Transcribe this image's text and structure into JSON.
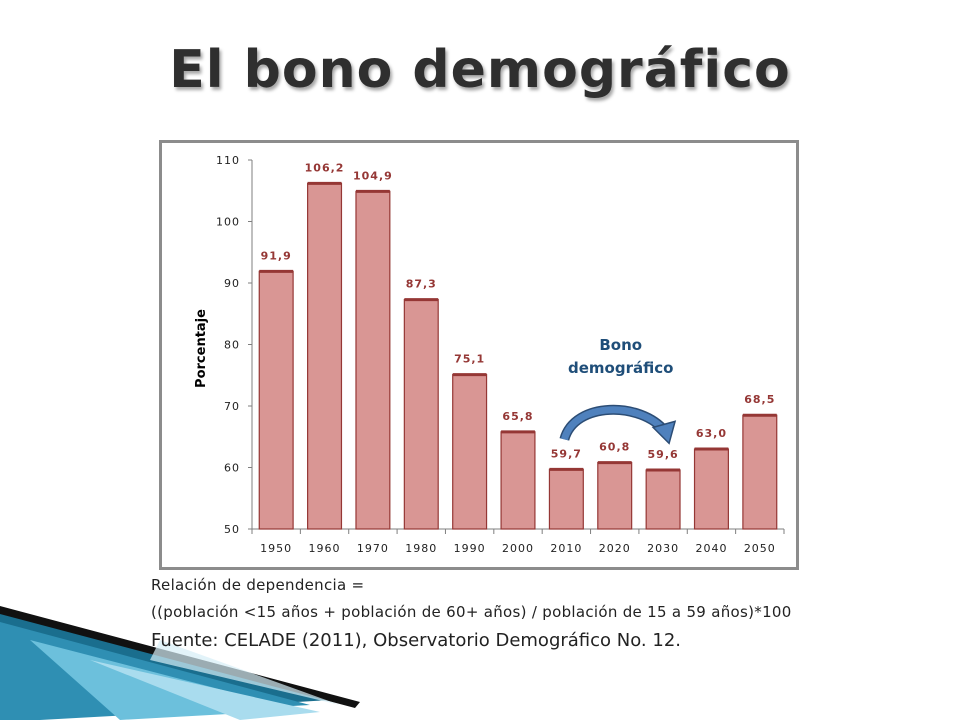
{
  "slide": {
    "title": "El bono demográfico",
    "footnotes": [
      "Relación de dependencia =",
      "((población <15 años + población de 60+ años) / población de 15 a 59 años)*100",
      "Fuente: CELADE (2011), Observatorio Demográfico No. 12."
    ]
  },
  "chart_data": {
    "type": "bar",
    "title": "",
    "xlabel": "",
    "ylabel": "Porcentaje",
    "categories": [
      "1950",
      "1960",
      "1970",
      "1980",
      "1990",
      "2000",
      "2010",
      "2020",
      "2030",
      "2040",
      "2050"
    ],
    "values": [
      91.9,
      106.2,
      104.9,
      87.3,
      75.1,
      65.8,
      59.7,
      60.8,
      59.6,
      63.0,
      68.5
    ],
    "value_labels": [
      "91,9",
      "106,2",
      "104,9",
      "87,3",
      "75,1",
      "65,8",
      "59,7",
      "60,8",
      "59,6",
      "63,0",
      "68,5"
    ],
    "ylim": [
      50,
      110
    ],
    "yticks": [
      50,
      60,
      70,
      80,
      90,
      100,
      110
    ],
    "grid": false,
    "bar_color": "#d99694",
    "bar_border_color": "#953735",
    "label_color": "#953735",
    "annotation": {
      "text_lines": [
        "Bono",
        "demográfico"
      ],
      "color": "#1f4e79",
      "arrow_color": "#4f81bd",
      "arrow_from_category": "2010",
      "arrow_to_category": "2030"
    }
  }
}
